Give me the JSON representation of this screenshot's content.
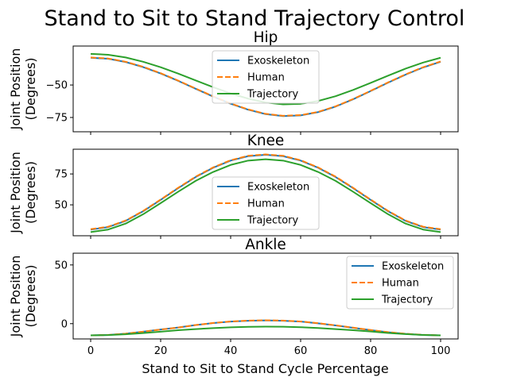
{
  "figure": {
    "title": "Stand to Sit to Stand Trajectory Control",
    "xlabel": "Stand to Sit to Stand Cycle Percentage"
  },
  "chart_data": [
    {
      "type": "line",
      "title": "Hip",
      "xlabel": "Stand to Sit to Stand Cycle Percentage",
      "ylabel": "Joint Position\n(Degrees)",
      "xlim": [
        -5,
        105
      ],
      "ylim": [
        -86,
        -20
      ],
      "xticks": [
        0,
        20,
        40,
        60,
        80,
        100
      ],
      "show_xticklabels": false,
      "yticks": [
        -75,
        -50
      ],
      "ytick_labels": [
        "−75",
        "−50"
      ],
      "grid": false,
      "legend_position": "top-center",
      "x": [
        0,
        5,
        10,
        15,
        20,
        25,
        30,
        35,
        40,
        45,
        50,
        55,
        60,
        65,
        70,
        75,
        80,
        85,
        90,
        95,
        100
      ],
      "series": [
        {
          "name": "Exoskeleton",
          "color": "#1f77b4",
          "style": "solid",
          "values": [
            -29.0,
            -29.8,
            -32.3,
            -36.2,
            -41.1,
            -46.8,
            -52.9,
            -58.9,
            -64.4,
            -69.0,
            -72.4,
            -73.9,
            -73.4,
            -70.9,
            -66.6,
            -61.0,
            -54.7,
            -48.2,
            -42.0,
            -36.5,
            -32.1
          ]
        },
        {
          "name": "Human",
          "color": "#ff7f0e",
          "style": "dashed",
          "values": [
            -28.8,
            -29.6,
            -32.1,
            -36.0,
            -40.9,
            -46.6,
            -52.7,
            -58.7,
            -64.2,
            -68.8,
            -72.2,
            -73.7,
            -73.2,
            -70.7,
            -66.4,
            -60.8,
            -54.5,
            -48.0,
            -41.8,
            -36.3,
            -31.9
          ]
        },
        {
          "name": "Trajectory",
          "color": "#2ca02c",
          "style": "solid",
          "values": [
            -26.0,
            -26.7,
            -28.8,
            -32.1,
            -36.3,
            -41.2,
            -46.5,
            -51.7,
            -56.5,
            -60.5,
            -63.5,
            -64.9,
            -64.5,
            -62.3,
            -58.6,
            -53.8,
            -48.4,
            -42.8,
            -37.4,
            -32.7,
            -29.0
          ]
        }
      ]
    },
    {
      "type": "line",
      "title": "Knee",
      "xlabel": "Stand to Sit to Stand Cycle Percentage",
      "ylabel": "Joint Position\n(Degrees)",
      "xlim": [
        -5,
        105
      ],
      "ylim": [
        25,
        95
      ],
      "xticks": [
        0,
        20,
        40,
        60,
        80,
        100
      ],
      "show_xticklabels": false,
      "yticks": [
        50,
        75
      ],
      "ytick_labels": [
        "50",
        "75"
      ],
      "grid": false,
      "legend_position": "bottom-center",
      "x": [
        0,
        5,
        10,
        15,
        20,
        25,
        30,
        35,
        40,
        45,
        50,
        55,
        60,
        65,
        70,
        75,
        80,
        85,
        90,
        95,
        100
      ],
      "series": [
        {
          "name": "Exoskeleton",
          "color": "#1f77b4",
          "style": "solid",
          "values": [
            30.0,
            32.0,
            37.0,
            44.8,
            54.0,
            63.5,
            72.5,
            80.0,
            85.8,
            89.4,
            90.5,
            89.4,
            85.8,
            80.0,
            72.5,
            63.5,
            54.0,
            44.8,
            37.0,
            32.0,
            30.0
          ]
        },
        {
          "name": "Human",
          "color": "#ff7f0e",
          "style": "dashed",
          "values": [
            30.3,
            32.3,
            37.3,
            45.1,
            54.3,
            63.8,
            72.8,
            80.3,
            86.1,
            89.7,
            90.8,
            89.7,
            86.1,
            80.3,
            72.8,
            63.8,
            54.3,
            45.1,
            37.3,
            32.3,
            30.3
          ]
        },
        {
          "name": "Trajectory",
          "color": "#2ca02c",
          "style": "solid",
          "values": [
            28.0,
            30.0,
            34.8,
            42.4,
            51.4,
            60.6,
            69.4,
            76.6,
            82.3,
            85.8,
            86.9,
            85.8,
            82.3,
            76.6,
            69.4,
            60.6,
            51.4,
            42.4,
            34.8,
            30.0,
            28.0
          ]
        }
      ]
    },
    {
      "type": "line",
      "title": "Ankle",
      "xlabel": "Stand to Sit to Stand Cycle Percentage",
      "ylabel": "Joint Position\n(Degrees)",
      "xlim": [
        -5,
        105
      ],
      "ylim": [
        -13,
        60
      ],
      "xticks": [
        0,
        20,
        40,
        60,
        80,
        100
      ],
      "show_xticklabels": true,
      "yticks": [
        0,
        50
      ],
      "ytick_labels": [
        "0",
        "50"
      ],
      "grid": false,
      "legend_position": "top-right",
      "x": [
        0,
        5,
        10,
        15,
        20,
        25,
        30,
        35,
        40,
        45,
        50,
        55,
        60,
        65,
        70,
        75,
        80,
        85,
        90,
        95,
        100
      ],
      "series": [
        {
          "name": "Exoskeleton",
          "color": "#1f77b4",
          "style": "solid",
          "values": [
            -10.0,
            -9.6,
            -8.5,
            -6.8,
            -5.0,
            -3.3,
            -1.2,
            0.5,
            1.8,
            2.5,
            2.8,
            2.5,
            1.8,
            0.3,
            -1.5,
            -3.5,
            -5.5,
            -7.3,
            -8.7,
            -9.6,
            -10.0
          ]
        },
        {
          "name": "Human",
          "color": "#ff7f0e",
          "style": "dashed",
          "values": [
            -10.0,
            -9.6,
            -8.5,
            -6.8,
            -5.0,
            -3.3,
            -1.2,
            0.6,
            1.9,
            2.6,
            2.9,
            2.6,
            1.9,
            0.4,
            -1.4,
            -3.4,
            -5.4,
            -7.2,
            -8.6,
            -9.5,
            -10.0
          ]
        },
        {
          "name": "Trajectory",
          "color": "#2ca02c",
          "style": "solid",
          "values": [
            -10.0,
            -9.7,
            -9.0,
            -8.0,
            -6.8,
            -5.6,
            -4.6,
            -3.8,
            -3.1,
            -2.7,
            -2.5,
            -2.6,
            -3.0,
            -3.7,
            -4.6,
            -5.6,
            -6.7,
            -7.9,
            -8.9,
            -9.6,
            -10.0
          ]
        }
      ]
    }
  ]
}
